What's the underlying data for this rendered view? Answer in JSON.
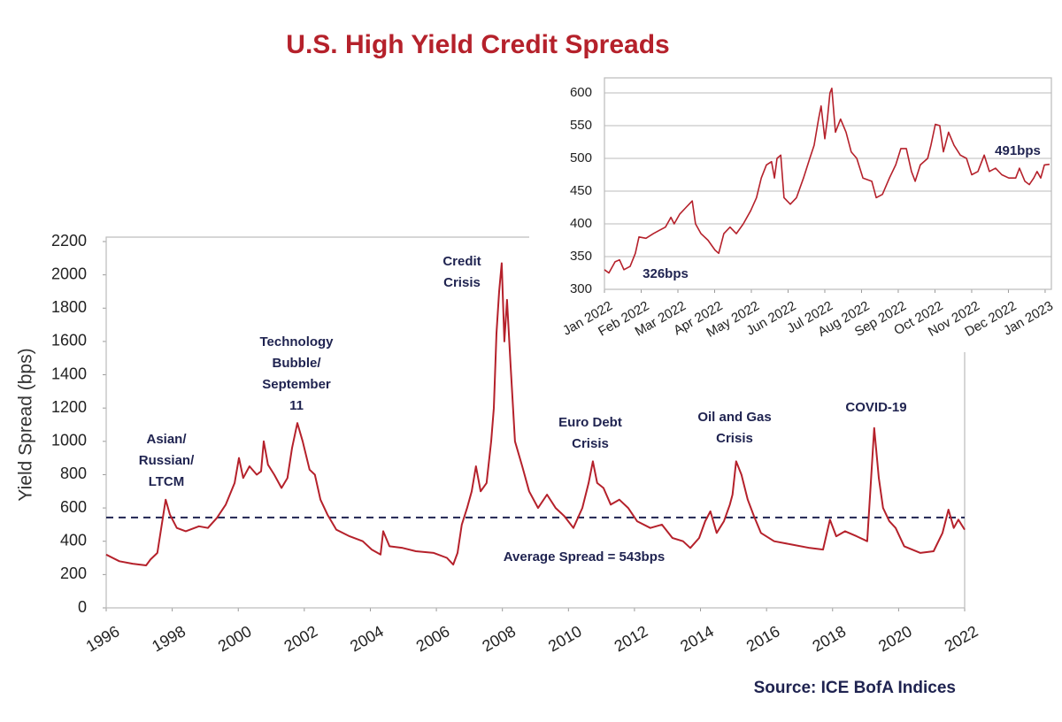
{
  "chart_data": [
    {
      "type": "line",
      "title": "U.S. High Yield Credit Spreads",
      "y_label": "Yield Spread (bps)",
      "source": "Source: ICE BofA Indices",
      "xlim": [
        1996,
        2022
      ],
      "xticks": [
        1996,
        1998,
        2000,
        2002,
        2004,
        2006,
        2008,
        2010,
        2012,
        2014,
        2016,
        2018,
        2020,
        2022
      ],
      "ylim": [
        0,
        2200
      ],
      "yticks": [
        0,
        200,
        400,
        600,
        800,
        1000,
        1200,
        1400,
        1600,
        1800,
        2000,
        2200
      ],
      "grid": false,
      "color": "#b5212b",
      "x": [
        1996.0,
        1996.4,
        1996.8,
        1997.21,
        1997.34,
        1997.55,
        1997.66,
        1997.8,
        1997.93,
        1998.14,
        1998.41,
        1998.81,
        1999.08,
        1999.35,
        1999.62,
        1999.89,
        2000.02,
        2000.15,
        2000.34,
        2000.56,
        2000.69,
        2000.77,
        2000.9,
        2001.09,
        2001.31,
        2001.49,
        2001.63,
        2001.79,
        2001.95,
        2002.16,
        2002.32,
        2002.49,
        2002.7,
        2002.97,
        2003.37,
        2003.77,
        2004.04,
        2004.31,
        2004.39,
        2004.58,
        2004.98,
        2005.38,
        2005.92,
        2006.32,
        2006.51,
        2006.64,
        2006.77,
        2006.93,
        2007.07,
        2007.2,
        2007.34,
        2007.52,
        2007.66,
        2007.74,
        2007.82,
        2007.9,
        2007.98,
        2008.06,
        2008.14,
        2008.25,
        2008.38,
        2008.6,
        2008.81,
        2009.08,
        2009.35,
        2009.61,
        2009.88,
        2010.15,
        2010.42,
        2010.61,
        2010.74,
        2010.87,
        2011.06,
        2011.28,
        2011.54,
        2011.81,
        2012.08,
        2012.48,
        2012.83,
        2013.15,
        2013.47,
        2013.69,
        2013.96,
        2014.14,
        2014.3,
        2014.49,
        2014.71,
        2014.89,
        2014.97,
        2015.08,
        2015.24,
        2015.43,
        2015.62,
        2015.83,
        2016.23,
        2016.77,
        2017.31,
        2017.71,
        2017.92,
        2018.11,
        2018.38,
        2018.73,
        2019.05,
        2019.26,
        2019.4,
        2019.53,
        2019.72,
        2019.91,
        2020.17,
        2020.66,
        2021.06,
        2021.33,
        2021.51,
        2021.67,
        2021.81,
        2022.0
      ],
      "values": [
        320,
        280,
        265,
        255,
        290,
        330,
        470,
        650,
        560,
        480,
        460,
        490,
        480,
        540,
        620,
        750,
        900,
        780,
        850,
        800,
        820,
        1000,
        860,
        800,
        720,
        780,
        960,
        1110,
        1000,
        830,
        800,
        650,
        560,
        470,
        430,
        400,
        350,
        320,
        460,
        370,
        360,
        340,
        330,
        300,
        260,
        330,
        500,
        600,
        700,
        850,
        700,
        750,
        1000,
        1200,
        1650,
        1900,
        2070,
        1600,
        1850,
        1450,
        1000,
        850,
        700,
        600,
        680,
        600,
        550,
        480,
        600,
        750,
        880,
        750,
        720,
        620,
        650,
        600,
        520,
        480,
        500,
        420,
        400,
        360,
        420,
        520,
        580,
        450,
        520,
        620,
        680,
        880,
        800,
        650,
        550,
        450,
        400,
        380,
        360,
        350,
        530,
        430,
        460,
        430,
        400,
        1080,
        780,
        600,
        520,
        480,
        370,
        330,
        340,
        450,
        590,
        480,
        530,
        470
      ],
      "average": 543,
      "average_label": "Average Spread = 543bps",
      "annotations": [
        [
          "Asian/",
          "Russian/",
          "LTCM"
        ],
        [
          "Technology",
          "Bubble/",
          "September",
          "11"
        ],
        [
          "Credit",
          "Crisis"
        ],
        [
          "Euro Debt",
          "Crisis"
        ],
        [
          "Oil and Gas",
          "Crisis"
        ],
        [
          "COVID-19"
        ]
      ]
    },
    {
      "type": "line",
      "grid": true,
      "color": "#b5212b",
      "xlim": [
        0,
        12.17
      ],
      "xticks": [
        {
          "value": 0,
          "label": "Jan 2022"
        },
        {
          "value": 1,
          "label": "Feb 2022"
        },
        {
          "value": 2,
          "label": "Mar 2022"
        },
        {
          "value": 3,
          "label": "Apr 2022"
        },
        {
          "value": 4,
          "label": "May 2022"
        },
        {
          "value": 5,
          "label": "Jun 2022"
        },
        {
          "value": 6,
          "label": "Jul 2022"
        },
        {
          "value": 7,
          "label": "Aug 2022"
        },
        {
          "value": 8,
          "label": "Sep 2022"
        },
        {
          "value": 9,
          "label": "Oct 2022"
        },
        {
          "value": 10,
          "label": "Nov 2022"
        },
        {
          "value": 11,
          "label": "Dec 2022"
        },
        {
          "value": 12,
          "label": "Jan 2023"
        }
      ],
      "ylim": [
        300,
        600
      ],
      "yticks": [
        300,
        350,
        400,
        450,
        500,
        550,
        600
      ],
      "x": [
        0.0,
        0.12,
        0.29,
        0.41,
        0.53,
        0.7,
        0.84,
        0.94,
        1.13,
        1.33,
        1.49,
        1.66,
        1.81,
        1.9,
        2.05,
        2.22,
        2.39,
        2.48,
        2.63,
        2.82,
        3.01,
        3.11,
        3.25,
        3.42,
        3.59,
        3.78,
        3.98,
        4.14,
        4.27,
        4.41,
        4.55,
        4.63,
        4.7,
        4.8,
        4.89,
        5.06,
        5.23,
        5.42,
        5.59,
        5.71,
        5.83,
        5.9,
        6.0,
        6.07,
        6.14,
        6.19,
        6.29,
        6.43,
        6.58,
        6.72,
        6.87,
        7.04,
        7.28,
        7.4,
        7.57,
        7.76,
        7.93,
        8.07,
        8.22,
        8.36,
        8.46,
        8.6,
        8.8,
        8.89,
        9.01,
        9.13,
        9.23,
        9.37,
        9.52,
        9.69,
        9.86,
        10.0,
        10.17,
        10.34,
        10.48,
        10.65,
        10.82,
        11.01,
        11.2,
        11.3,
        11.45,
        11.57,
        11.69,
        11.78,
        11.88,
        11.98,
        12.12
      ],
      "values": [
        330,
        325,
        342,
        345,
        330,
        335,
        355,
        380,
        378,
        385,
        390,
        395,
        410,
        400,
        415,
        425,
        435,
        400,
        385,
        375,
        360,
        355,
        385,
        395,
        385,
        400,
        420,
        440,
        470,
        490,
        495,
        470,
        500,
        505,
        440,
        430,
        440,
        470,
        500,
        520,
        560,
        580,
        530,
        560,
        600,
        607,
        540,
        560,
        540,
        510,
        500,
        470,
        465,
        440,
        445,
        470,
        490,
        515,
        515,
        480,
        465,
        490,
        500,
        520,
        552,
        550,
        510,
        540,
        520,
        505,
        500,
        475,
        480,
        505,
        480,
        485,
        475,
        470,
        470,
        485,
        465,
        460,
        470,
        480,
        470,
        490,
        491
      ],
      "annotations": [
        "326bps",
        "491bps"
      ]
    }
  ]
}
